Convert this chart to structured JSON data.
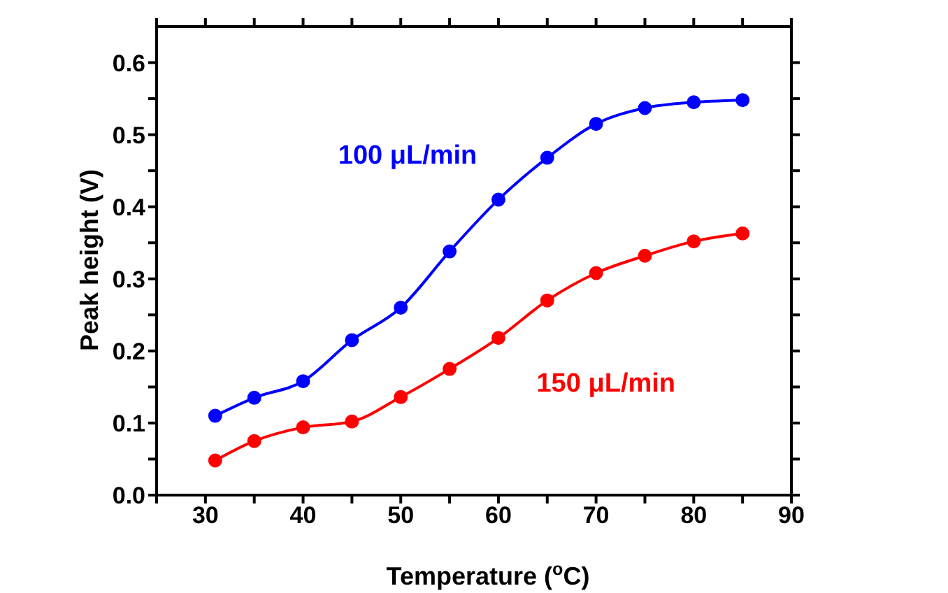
{
  "chart_data": {
    "type": "line",
    "xlabel": "Temperature  ($^{o}$C)",
    "ylabel": "Peak height  (V)",
    "x": [
      31,
      35,
      40,
      45,
      50,
      55,
      60,
      65,
      70,
      75,
      80,
      85
    ],
    "series": [
      {
        "name": "100 μL/min",
        "color": "#0000ff",
        "values": [
          0.11,
          0.135,
          0.158,
          0.215,
          0.26,
          0.338,
          0.41,
          0.468,
          0.515,
          0.537,
          0.545,
          0.548
        ]
      },
      {
        "name": "150 μL/min",
        "color": "#ff0000",
        "values": [
          0.048,
          0.075,
          0.094,
          0.102,
          0.136,
          0.175,
          0.218,
          0.27,
          0.308,
          0.332,
          0.352,
          0.363
        ]
      }
    ],
    "xlim": [
      25,
      90
    ],
    "xticks": [
      {
        "value": 25,
        "label": null
      },
      30,
      {
        "value": 35,
        "label": null
      },
      40,
      {
        "value": 45,
        "label": null
      },
      50,
      {
        "value": 55,
        "label": null
      },
      60,
      {
        "value": 65,
        "label": null
      },
      70,
      {
        "value": 75,
        "label": null
      },
      80,
      {
        "value": 85,
        "label": null
      },
      90
    ],
    "ylim": [
      0,
      0.65
    ],
    "yticks": [
      {
        "value": 0,
        "label": "0.0"
      },
      {
        "value": 0.05,
        "label": null
      },
      0.1,
      {
        "value": 0.15,
        "label": null
      },
      0.2,
      {
        "value": 0.25,
        "label": null
      },
      0.3,
      {
        "value": 0.35,
        "label": null
      },
      0.4,
      {
        "value": 0.45,
        "label": null
      },
      0.5,
      {
        "value": 0.55,
        "label": null
      },
      0.6
    ],
    "marker": "circle",
    "line_style": "solid",
    "grid": false
  }
}
